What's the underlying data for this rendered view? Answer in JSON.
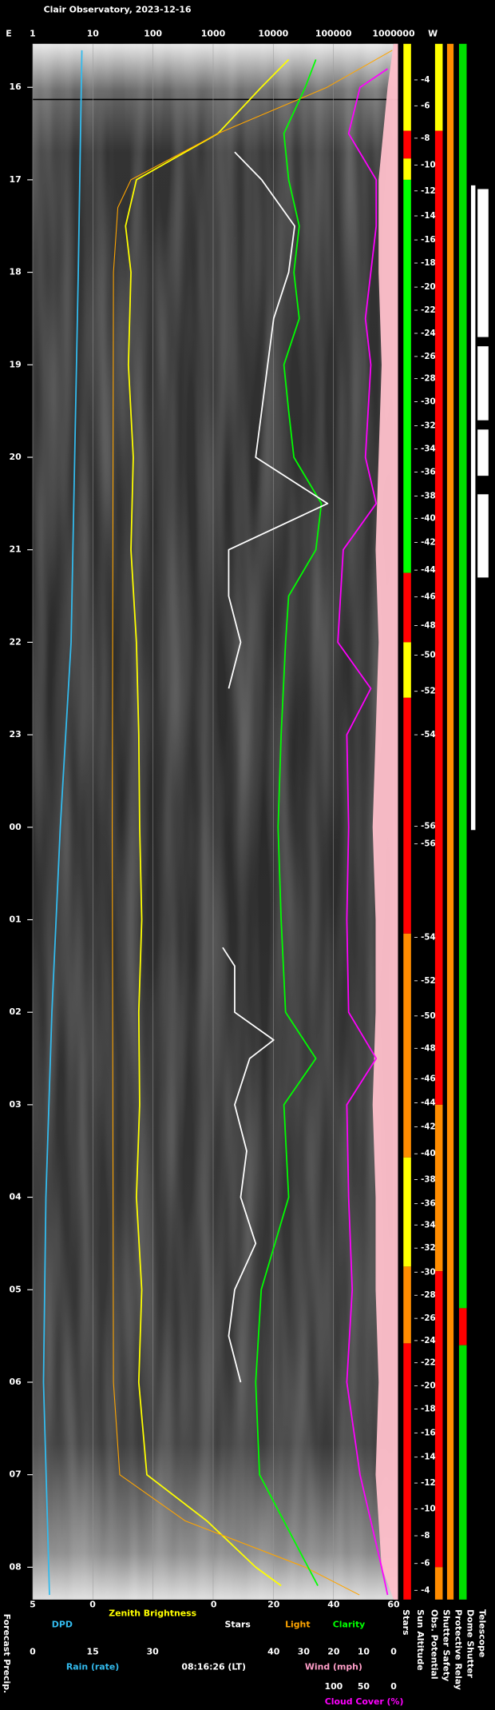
{
  "chart_data": {
    "type": "line",
    "title": "Clair Observatory, 2023-12-16",
    "left_label": "E",
    "right_label": "W",
    "time_label": "08:16:26 (LT)",
    "precip_label": "Forecast Precip.",
    "xscale": "log",
    "xlim": [
      1,
      1000000
    ],
    "xticks": [
      1,
      10,
      100,
      1000,
      10000,
      100000,
      1000000
    ],
    "ylim": [
      15.53,
      32.35
    ],
    "yticks": [
      16,
      17,
      18,
      19,
      20,
      21,
      22,
      23,
      {
        "value": 24,
        "label": "00"
      },
      {
        "value": 25,
        "label": "01"
      },
      {
        "value": 26,
        "label": "02"
      },
      {
        "value": 27,
        "label": "03"
      },
      {
        "value": 28,
        "label": "04"
      },
      {
        "value": 29,
        "label": "05"
      },
      {
        "value": 30,
        "label": "06"
      },
      {
        "value": 31,
        "label": "07"
      },
      {
        "value": 32,
        "label": "08"
      }
    ],
    "grid": true,
    "bottom_axes": [
      {
        "color": "#33bbee",
        "lim": [
          5,
          0
        ],
        "ticks": [
          5,
          0
        ]
      },
      {
        "name": "Rain (rate)",
        "color": "#33bbee",
        "lim": [
          0,
          30
        ],
        "ticks": [
          0,
          15,
          30
        ]
      },
      {
        "color": "#ffffff",
        "lim": [
          0,
          60
        ],
        "ticks": [
          0,
          20,
          40,
          60
        ]
      },
      {
        "name": "Wind (mph)",
        "color": "#ff9ec8",
        "lim": [
          40,
          0
        ],
        "ticks": [
          40,
          30,
          20,
          10,
          0
        ]
      },
      {
        "color": "#ff00ff",
        "lim": [
          100,
          0
        ],
        "ticks": [
          100,
          50,
          0
        ]
      }
    ],
    "series": [
      {
        "name": "Zenith Brightness",
        "color": "#ffff00",
        "axis": "x",
        "times": [
          15.7,
          16,
          16.5,
          17,
          17.5,
          18,
          19,
          20,
          21,
          22,
          23,
          24,
          25,
          26,
          27,
          28,
          29,
          30,
          31,
          31.5,
          32,
          32.2
        ],
        "values": [
          18000,
          6300,
          1200,
          53,
          35,
          43,
          39,
          47,
          43,
          53,
          58,
          60,
          65,
          58,
          60,
          53,
          65,
          58,
          79,
          790,
          5100,
          13500
        ]
      },
      {
        "name": "Light",
        "color": "#ffa500",
        "axis": "x",
        "times": [
          15.6,
          16,
          16.5,
          17,
          17.3,
          18,
          24,
          30,
          31,
          31.5,
          32,
          32.3
        ],
        "values": [
          950000,
          78000,
          1200,
          43,
          26,
          22,
          21,
          22,
          28,
          345,
          34000,
          270000
        ]
      },
      {
        "name": "Clarity",
        "color": "#00ff00",
        "axis": "x",
        "times": [
          15.7,
          16,
          16.5,
          17,
          17.5,
          18,
          18.5,
          19,
          19.5,
          20,
          20.5,
          21,
          21.5,
          22,
          23,
          24,
          25,
          26,
          26.5,
          27,
          28,
          29,
          30,
          31,
          32.2
        ],
        "values": [
          51000,
          34000,
          15000,
          18000,
          27000,
          22000,
          27000,
          15000,
          18000,
          22000,
          63000,
          51000,
          18000,
          16000,
          13500,
          12000,
          13500,
          16000,
          51000,
          15000,
          18000,
          6300,
          5100,
          5900,
          55000
        ]
      },
      {
        "name": "Stars",
        "color": "#ffffff",
        "axis": 2,
        "times": [
          16.7,
          17,
          17.5,
          18,
          18.5,
          19,
          19.5,
          20,
          20.5,
          21,
          21.5,
          22,
          22.5,
          23,
          24,
          25.3,
          25.5,
          26,
          26.3,
          26.5,
          27,
          27.5,
          28,
          28.5,
          29,
          29.5,
          30,
          30.2
        ],
        "values": [
          7,
          16,
          27,
          25,
          20,
          18,
          16,
          14,
          38,
          5,
          5,
          9,
          5,
          null,
          null,
          3,
          7,
          7,
          20,
          12,
          7,
          11,
          9,
          14,
          7,
          5,
          9,
          null
        ]
      },
      {
        "name": "Cloud Cover (%)",
        "color": "#ff00ff",
        "axis": 4,
        "times": [
          15.8,
          16,
          16.5,
          17,
          17.5,
          18,
          18.5,
          19,
          20,
          20.5,
          21,
          22,
          22.5,
          23,
          24,
          25,
          26,
          26.5,
          27,
          28,
          29,
          30,
          31,
          32,
          32.3
        ],
        "values": [
          10,
          56,
          75,
          29,
          29,
          38,
          47,
          38,
          47,
          29,
          84,
          93,
          38,
          78,
          75,
          78,
          75,
          29,
          78,
          75,
          69,
          78,
          56,
          20,
          10
        ]
      },
      {
        "name": "DPD",
        "color": "#33bbee",
        "axis": 0,
        "times": [
          15.6,
          18,
          20,
          22,
          24,
          26,
          28,
          30,
          32.3
        ],
        "values": [
          0.9,
          1.2,
          1.5,
          1.8,
          2.7,
          3.4,
          3.9,
          4.1,
          3.6
        ]
      }
    ],
    "cloud_fill": {
      "color": "#ffc0cb",
      "axis": 4,
      "times": [
        15.53,
        16,
        17,
        18,
        19,
        20,
        21,
        22,
        23,
        24,
        25,
        26,
        27,
        28,
        29,
        30,
        31,
        32,
        32.35
      ],
      "values": [
        0,
        10,
        25,
        25,
        20,
        25,
        30,
        25,
        30,
        35,
        30,
        30,
        35,
        30,
        30,
        25,
        30,
        20,
        0
      ]
    },
    "sun_altitude": {
      "name": "Sun Altitude",
      "times": [
        15.92,
        16.2,
        16.55,
        16.84,
        17.12,
        17.39,
        17.65,
        17.9,
        18.16,
        18.41,
        18.66,
        18.91,
        19.15,
        19.4,
        19.66,
        19.91,
        20.16,
        20.42,
        20.66,
        20.92,
        21.22,
        21.51,
        21.82,
        22.14,
        22.53,
        23.0,
        23.99,
        24.18,
        25.19,
        25.66,
        26.04,
        26.39,
        26.72,
        26.98,
        27.24,
        27.53,
        27.81,
        28.07,
        28.3,
        28.55,
        28.81,
        29.06,
        29.31,
        29.55,
        29.79,
        30.04,
        30.29,
        30.55,
        30.81,
        31.09,
        31.37,
        31.66,
        31.96,
        32.25
      ],
      "values": [
        -4,
        -6,
        -8,
        -10,
        -12,
        -14,
        -16,
        -18,
        -20,
        -22,
        -24,
        -26,
        -28,
        -30,
        -32,
        -34,
        -36,
        -38,
        -40,
        -42,
        -44,
        -46,
        -48,
        -50,
        -52,
        -54,
        -56,
        -56,
        -54,
        -52,
        -50,
        -48,
        -46,
        -44,
        -42,
        -40,
        -38,
        -36,
        -34,
        -32,
        -30,
        -28,
        -26,
        -24,
        -22,
        -20,
        -18,
        -16,
        -14,
        -12,
        -10,
        -8,
        -6,
        -4
      ]
    },
    "status_columns": [
      {
        "name": "Stars",
        "segments": [
          {
            "from": 15.53,
            "to": 16.47,
            "color": "#ffff00"
          },
          {
            "from": 16.47,
            "to": 16.77,
            "color": "#ff0000"
          },
          {
            "from": 16.77,
            "to": 17.0,
            "color": "#ffff00"
          },
          {
            "from": 17.0,
            "to": 21.25,
            "color": "#00ff00"
          },
          {
            "from": 21.25,
            "to": 22.0,
            "color": "#ff0000"
          },
          {
            "from": 22.0,
            "to": 22.6,
            "color": "#ffff00"
          },
          {
            "from": 22.6,
            "to": 25.15,
            "color": "#ff0000"
          },
          {
            "from": 25.15,
            "to": 27.57,
            "color": "#ff8c00"
          },
          {
            "from": 27.57,
            "to": 28.75,
            "color": "#ffff00"
          },
          {
            "from": 28.75,
            "to": 29.58,
            "color": "#ff8c00"
          },
          {
            "from": 29.58,
            "to": 32.35,
            "color": "#ff0000"
          }
        ]
      },
      {
        "name": "Obs. Potential",
        "segments": [
          {
            "from": 15.53,
            "to": 16.47,
            "color": "#ffff00"
          },
          {
            "from": 16.47,
            "to": 27.0,
            "color": "#ff0000"
          },
          {
            "from": 27.0,
            "to": 28.8,
            "color": "#ff8c00"
          },
          {
            "from": 28.8,
            "to": 32.0,
            "color": "#ff0000"
          },
          {
            "from": 32.0,
            "to": 32.35,
            "color": "#ff8c00"
          }
        ]
      },
      {
        "name": "Shutter Safety",
        "segments": [
          {
            "from": 15.53,
            "to": 32.35,
            "color": "#ff8c00"
          }
        ]
      },
      {
        "name": "Protective Relay",
        "segments": [
          {
            "from": 15.53,
            "to": 29.2,
            "color": "#00e000"
          },
          {
            "from": 29.2,
            "to": 29.6,
            "color": "#ff0000"
          },
          {
            "from": 29.6,
            "to": 32.35,
            "color": "#00e000"
          }
        ]
      },
      {
        "name": "Dome Shutter",
        "segments": [
          {
            "from": 17.06,
            "to": 24.03,
            "color": "#ffffff"
          }
        ]
      },
      {
        "name": "Telescope",
        "segments": [
          {
            "from": 17.1,
            "to": 18.7,
            "color": "#ffffff"
          },
          {
            "from": 18.8,
            "to": 19.6,
            "color": "#ffffff"
          },
          {
            "from": 19.7,
            "to": 20.2,
            "color": "#ffffff"
          },
          {
            "from": 20.4,
            "to": 21.3,
            "color": "#ffffff"
          }
        ]
      }
    ]
  }
}
